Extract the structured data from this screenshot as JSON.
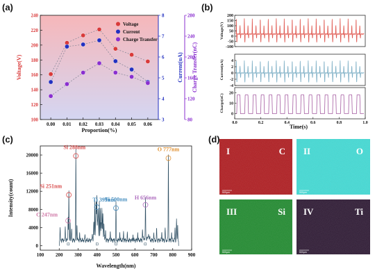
{
  "panels": {
    "a": "(a)",
    "b": "(b)",
    "c": "(c)",
    "d": "(d)"
  },
  "colors": {
    "voltage": "#d93a3a",
    "current": "#2230c0",
    "charge": "#8a2fcf",
    "b_voltage": "#e05a52",
    "b_current": "#7fb0c6",
    "b_charge": "#a45aa0",
    "spectrum": "#2f4f63"
  },
  "chart_data": [
    {
      "type": "scatter",
      "panel": "a",
      "xlabel": "Proportion(%)",
      "x": [
        0.0,
        0.01,
        0.02,
        0.03,
        0.04,
        0.05,
        0.06
      ],
      "x_ticks": [
        "0.00",
        "0.01",
        "0.02",
        "0.03",
        "0.04",
        "0.05",
        "0.06"
      ],
      "legend_position": "top-right",
      "axes": {
        "left": {
          "label": "Voltage(V)",
          "ylim": [
            100,
            240
          ],
          "ticks": [
            100,
            120,
            140,
            160,
            180,
            200,
            220,
            240
          ]
        },
        "right1": {
          "label": "Current(uA)",
          "ylim": [
            3,
            8
          ],
          "ticks": [
            3,
            4,
            5,
            6,
            7,
            8
          ]
        },
        "right2": {
          "label": "Charge Transfer(nC)",
          "ylim": [
            80,
            280
          ],
          "ticks": [
            80,
            120,
            160,
            200,
            240,
            280
          ]
        }
      },
      "series": [
        {
          "name": "Voltage",
          "axis": "left",
          "values": [
            161,
            203,
            213,
            221,
            195,
            187,
            178
          ]
        },
        {
          "name": "Current",
          "axis": "right1",
          "values": [
            4.8,
            6.5,
            6.6,
            6.8,
            5.8,
            5.4,
            4.8
          ]
        },
        {
          "name": "Charge Transfer",
          "axis": "right2",
          "values": [
            125,
            148,
            170,
            188,
            170,
            162,
            150
          ]
        }
      ]
    },
    {
      "type": "line",
      "panel": "b",
      "xlabel": "Time(s)",
      "xlim": [
        0.0,
        1.0
      ],
      "x_ticks": [
        "0.0",
        "0.2",
        "0.4",
        "0.6",
        "0.8",
        "1.0"
      ],
      "cycles": 16,
      "subplots": [
        {
          "ylabel": "Voltage(V)",
          "ylim": [
            -100,
            200
          ],
          "ticks": [
            "-100",
            "-50",
            "0",
            "50",
            "100",
            "150",
            "200"
          ],
          "baseline": 20,
          "peak": 170,
          "trough": -60
        },
        {
          "ylabel": "Current(uA)",
          "ylim": [
            -4,
            6
          ],
          "ticks": [
            "-4",
            "-2",
            "0",
            "2",
            "4"
          ],
          "baseline": 0,
          "peak": 4,
          "trough": -3
        },
        {
          "ylabel": "Charge(nC)",
          "ylim": [
            -5,
            25
          ],
          "ticks": [
            "0",
            "10",
            "20"
          ],
          "low": 0,
          "high": 18
        }
      ]
    },
    {
      "type": "line",
      "panel": "c",
      "xlabel": "Wavelength(nm)",
      "ylabel": "Intensity(count)",
      "xlim": [
        100,
        900
      ],
      "ylim": [
        -1000,
        22000
      ],
      "x_ticks": [
        100,
        200,
        300,
        400,
        500,
        600,
        700,
        800,
        900
      ],
      "y_ticks": [
        0,
        4000,
        8000,
        12000,
        16000,
        20000
      ],
      "x_tick_labels": [
        "100",
        "200",
        "300",
        "400",
        "500",
        "600",
        "700",
        "800",
        "900"
      ],
      "y_tick_labels": [
        "0",
        "4000",
        "8000",
        "12000",
        "16000",
        "20000"
      ],
      "peaks": [
        {
          "x": 247,
          "y": 5500,
          "label": "C 247nm",
          "color": "#d07aa8"
        },
        {
          "x": 251,
          "y": 11200,
          "label": "Si 251nm",
          "color": "#d94f4f"
        },
        {
          "x": 288,
          "y": 19800,
          "label": "Si 288nm",
          "color": "#d94f4f"
        },
        {
          "x": 399,
          "y": 8500,
          "label": "Ti 399nm",
          "color": "#4a90c0"
        },
        {
          "x": 500,
          "y": 8300,
          "label": "Ti 500nm",
          "color": "#4a90c0"
        },
        {
          "x": 656,
          "y": 9000,
          "label": "H 656nm",
          "color": "#b070c0"
        },
        {
          "x": 777,
          "y": 19300,
          "label": "O 777nm",
          "color": "#e09030"
        }
      ]
    }
  ],
  "eds": [
    {
      "numeral": "I",
      "element": "C",
      "color": "#b0181c",
      "scale": "500μm"
    },
    {
      "numeral": "II",
      "element": "O",
      "color": "#3fdcd6",
      "scale": "500μm"
    },
    {
      "numeral": "III",
      "element": "Si",
      "color": "#1d8a2c",
      "scale": "500μm"
    },
    {
      "numeral": "IV",
      "element": "Ti",
      "color": "#2a1530",
      "scale": "500μm"
    }
  ]
}
